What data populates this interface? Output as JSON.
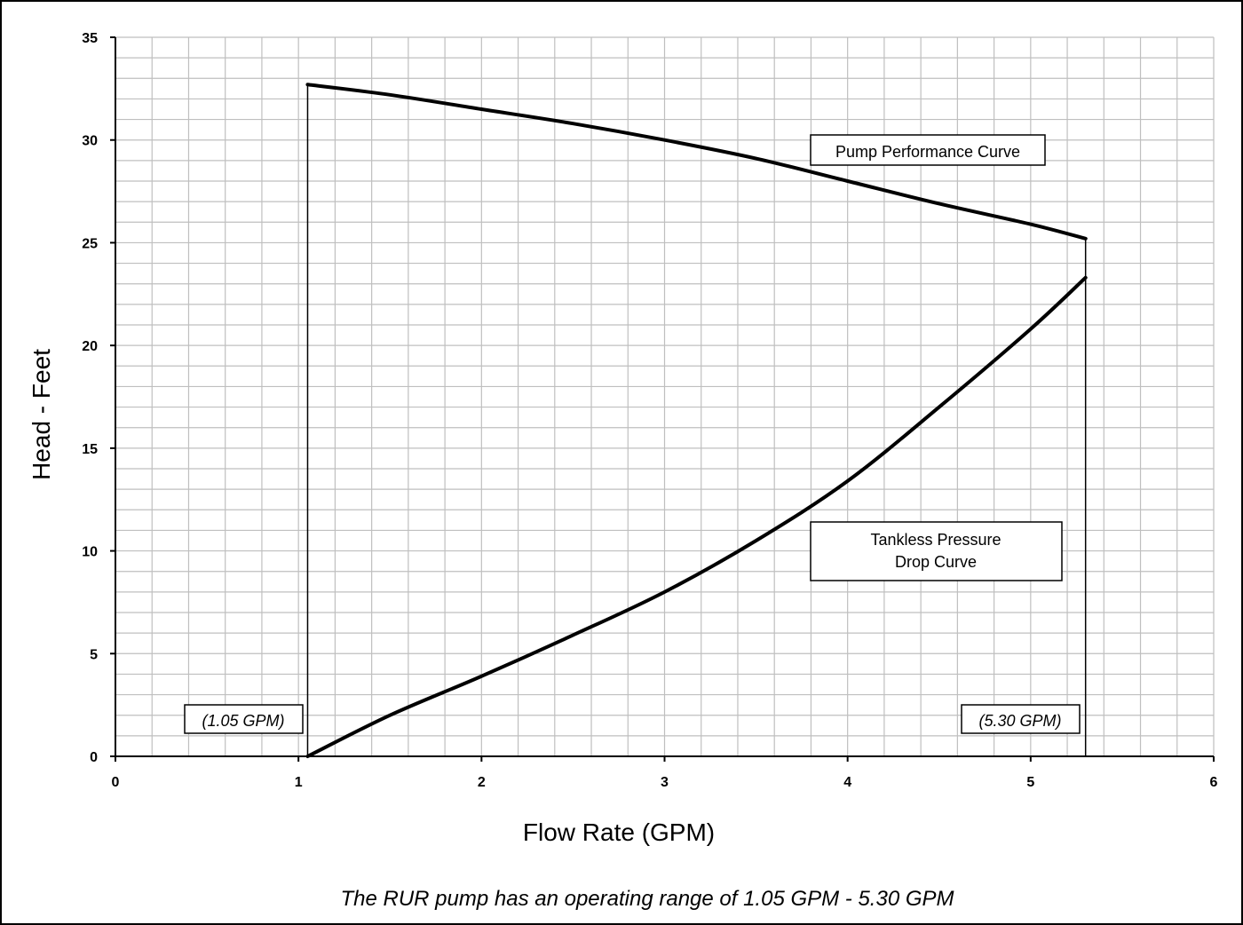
{
  "chart_data": {
    "type": "line",
    "xlabel": "Flow Rate (GPM)",
    "ylabel": "Head - Feet",
    "xlim": [
      0,
      6
    ],
    "ylim": [
      0,
      35
    ],
    "x_ticks": [
      "0",
      "1",
      "2",
      "3",
      "4",
      "5",
      "6"
    ],
    "y_ticks": [
      "0",
      "5",
      "10",
      "15",
      "20",
      "25",
      "30",
      "35"
    ],
    "grid": true,
    "series": [
      {
        "name": "Pump Performance Curve",
        "x": [
          1.05,
          1.5,
          2.0,
          2.5,
          3.0,
          3.5,
          4.0,
          4.5,
          5.0,
          5.3
        ],
        "y": [
          32.7,
          32.2,
          31.5,
          30.8,
          30.0,
          29.1,
          28.0,
          26.9,
          25.9,
          25.2
        ]
      },
      {
        "name": "Tankless Pressure Drop Curve",
        "x": [
          1.05,
          1.5,
          2.0,
          2.5,
          3.0,
          3.5,
          4.0,
          4.5,
          5.0,
          5.3
        ],
        "y": [
          0.0,
          2.0,
          3.9,
          5.9,
          8.0,
          10.5,
          13.4,
          17.0,
          20.8,
          23.3
        ]
      }
    ],
    "vertical_markers": [
      {
        "x": 1.05,
        "y_top": 32.7,
        "label": "(1.05 GPM)"
      },
      {
        "x": 5.3,
        "y_top": 25.2,
        "label": "(5.30 GPM)"
      }
    ],
    "annotations": [
      {
        "text": "Pump Performance Curve"
      },
      {
        "lines": [
          "Tankless Pressure",
          "Drop Curve"
        ]
      }
    ],
    "caption": "The RUR pump has an operating range of 1.05 GPM - 5.30 GPM",
    "colors": {
      "line": "#000000",
      "grid": "#bfbfbf",
      "background": "#ffffff"
    }
  }
}
